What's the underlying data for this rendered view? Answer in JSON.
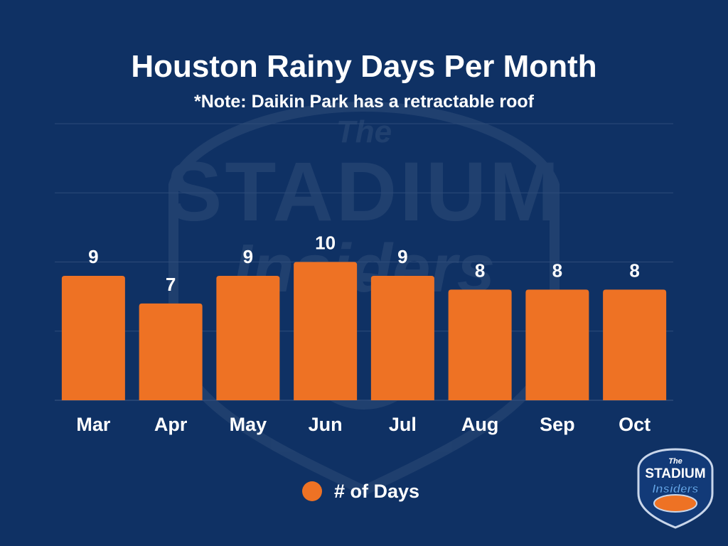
{
  "colors": {
    "background": "#0f3164",
    "bar": "#ee7224",
    "text": "#ffffff",
    "grid": "#2e4c7a"
  },
  "watermark": {
    "text_top": "The",
    "text_main": "STADIUM",
    "text_sub": "Insiders"
  },
  "logo": {
    "text_top": "The",
    "text_main": "STADIUM",
    "text_sub": "Insiders"
  },
  "chart_data": {
    "type": "bar",
    "title": "Houston Rainy Days Per Month",
    "subtitle": "*Note: Daikin Park has a retractable roof",
    "categories": [
      "Mar",
      "Apr",
      "May",
      "Jun",
      "Jul",
      "Aug",
      "Sep",
      "Oct"
    ],
    "series": [
      {
        "name": "# of Days",
        "values": [
          9,
          7,
          9,
          10,
          9,
          8,
          8,
          8
        ]
      }
    ],
    "ylim": [
      0,
      20
    ],
    "grid": true,
    "legend_position": "bottom-center",
    "data_labels": true
  }
}
